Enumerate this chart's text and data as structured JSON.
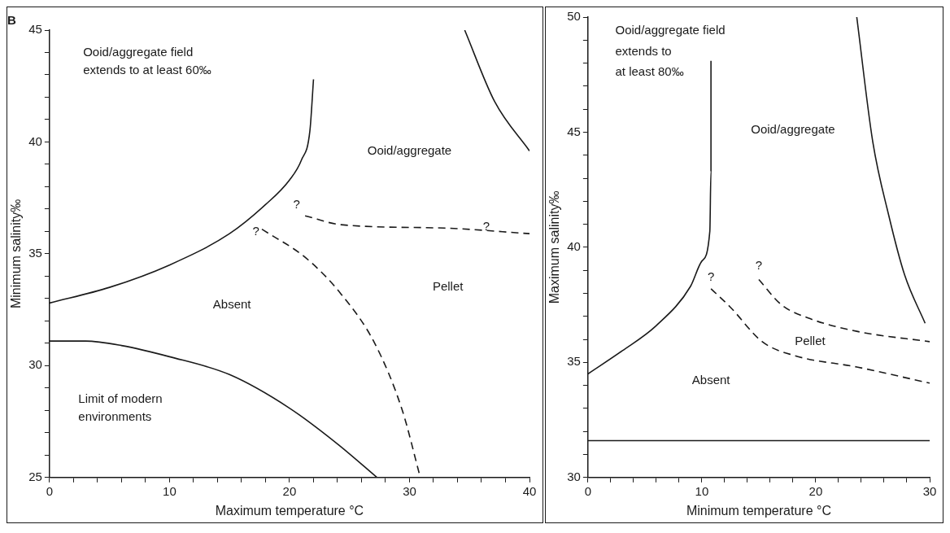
{
  "chart_data": [
    {
      "type": "line",
      "title": "B",
      "xlabel": "Maximum temperature °C",
      "ylabel": "Minimum salinity‰",
      "xlim": [
        0,
        40
      ],
      "ylim": [
        25,
        45
      ],
      "xticks": [
        0,
        {
          "value": 2,
          "label": null
        },
        {
          "value": 4,
          "label": null
        },
        {
          "value": 6,
          "label": null
        },
        {
          "value": 8,
          "label": null
        },
        10,
        {
          "value": 12,
          "label": null
        },
        {
          "value": 14,
          "label": null
        },
        {
          "value": 16,
          "label": null
        },
        {
          "value": 18,
          "label": null
        },
        20,
        {
          "value": 22,
          "label": null
        },
        {
          "value": 24,
          "label": null
        },
        {
          "value": 26,
          "label": null
        },
        {
          "value": 28,
          "label": null
        },
        30,
        {
          "value": 32,
          "label": null
        },
        {
          "value": 34,
          "label": null
        },
        {
          "value": 36,
          "label": null
        },
        {
          "value": 38,
          "label": null
        },
        40
      ],
      "yticks": [
        25,
        {
          "value": 26,
          "label": null
        },
        {
          "value": 27,
          "label": null
        },
        {
          "value": 28,
          "label": null
        },
        {
          "value": 29,
          "label": null
        },
        30,
        {
          "value": 31,
          "label": null
        },
        {
          "value": 32,
          "label": null
        },
        {
          "value": 33,
          "label": null
        },
        {
          "value": 34,
          "label": null
        },
        35,
        {
          "value": 36,
          "label": null
        },
        {
          "value": 37,
          "label": null
        },
        {
          "value": 38,
          "label": null
        },
        {
          "value": 39,
          "label": null
        },
        40,
        {
          "value": 41,
          "label": null
        },
        {
          "value": 42,
          "label": null
        },
        {
          "value": 43,
          "label": null
        },
        {
          "value": 44,
          "label": null
        },
        45
      ],
      "grid": false,
      "legend": false,
      "marker": "none",
      "series": [
        {
          "color": "#1a1a1a",
          "line_style": "solid",
          "x": [
            0,
            5,
            10,
            15,
            18,
            20,
            21,
            21.7,
            22
          ],
          "values": [
            32.8,
            33.5,
            34.5,
            35.9,
            37.2,
            38.3,
            39.2,
            40.5,
            42.8
          ]
        },
        {
          "color": "#1a1a1a",
          "line_style": "solid",
          "x": [
            0,
            3,
            6,
            10,
            15,
            20,
            24,
            27.3
          ],
          "values": [
            31.1,
            31.1,
            30.9,
            30.4,
            29.6,
            28.1,
            26.5,
            25
          ]
        },
        {
          "color": "#1a1a1a",
          "line_style": "solid",
          "x": [
            34.6,
            37.1,
            40
          ],
          "values": [
            45,
            41.8,
            39.6
          ]
        },
        {
          "color": "#1a1a1a",
          "line_style": "dashed",
          "x": [
            21.3,
            24.3,
            32.9,
            40
          ],
          "values": [
            36.7,
            36.3,
            36.15,
            35.9
          ]
        },
        {
          "color": "#1a1a1a",
          "line_style": "dashed",
          "x": [
            17.7,
            21.4,
            24.3,
            27.1,
            29.4,
            30.9
          ],
          "values": [
            36.1,
            34.8,
            33.2,
            31,
            28,
            25
          ]
        }
      ],
      "annotations": [
        "Ooid/aggregate field",
        "extends to at least 60‰",
        "Ooid/aggregate",
        "Absent",
        "Pellet",
        "Limit of modern",
        "environments",
        "?",
        "?",
        "?"
      ]
    },
    {
      "type": "line",
      "xlabel": "Minimum temperature °C",
      "ylabel": "Maximum salinity‰",
      "xlim": [
        0,
        30
      ],
      "ylim": [
        30,
        50
      ],
      "xticks": [
        0,
        {
          "value": 2,
          "label": null
        },
        {
          "value": 4,
          "label": null
        },
        {
          "value": 6,
          "label": null
        },
        {
          "value": 8,
          "label": null
        },
        10,
        {
          "value": 12,
          "label": null
        },
        {
          "value": 14,
          "label": null
        },
        {
          "value": 16,
          "label": null
        },
        {
          "value": 18,
          "label": null
        },
        20,
        {
          "value": 22,
          "label": null
        },
        {
          "value": 24,
          "label": null
        },
        {
          "value": 26,
          "label": null
        },
        {
          "value": 28,
          "label": null
        },
        30
      ],
      "yticks": [
        30,
        {
          "value": 31,
          "label": null
        },
        {
          "value": 32,
          "label": null
        },
        {
          "value": 33,
          "label": null
        },
        {
          "value": 34,
          "label": null
        },
        35,
        {
          "value": 36,
          "label": null
        },
        {
          "value": 37,
          "label": null
        },
        {
          "value": 38,
          "label": null
        },
        {
          "value": 39,
          "label": null
        },
        40,
        {
          "value": 41,
          "label": null
        },
        {
          "value": 42,
          "label": null
        },
        {
          "value": 43,
          "label": null
        },
        {
          "value": 44,
          "label": null
        },
        45,
        {
          "value": 46,
          "label": null
        },
        {
          "value": 47,
          "label": null
        },
        {
          "value": 48,
          "label": null
        },
        {
          "value": 49,
          "label": null
        },
        50
      ],
      "grid": false,
      "legend": false,
      "marker": "none",
      "series": [
        {
          "color": "#1a1a1a",
          "line_style": "solid",
          "x": [
            0,
            3,
            6,
            9,
            10,
            10.7,
            10.8,
            10.8
          ],
          "values": [
            34.5,
            35.5,
            36.6,
            38.3,
            39.4,
            40.7,
            43.3,
            48.1
          ]
        },
        {
          "color": "#1a1a1a",
          "line_style": "solid",
          "x": [
            23.6,
            25,
            26.4,
            27.8,
            29.6
          ],
          "values": [
            50,
            44.6,
            41.4,
            38.8,
            36.7
          ]
        },
        {
          "color": "#1a1a1a",
          "line_style": "solid",
          "x": [
            0,
            30
          ],
          "values": [
            31.6,
            31.6
          ]
        },
        {
          "color": "#1a1a1a",
          "line_style": "dashed",
          "x": [
            15,
            17,
            19.5,
            23.6,
            30
          ],
          "values": [
            38.6,
            37.5,
            36.9,
            36.35,
            35.9
          ]
        },
        {
          "color": "#1a1a1a",
          "line_style": "dashed",
          "x": [
            10.8,
            12.5,
            15.3,
            18.1,
            23.6,
            30
          ],
          "values": [
            38.2,
            37.4,
            35.9,
            35.3,
            34.8,
            34.1
          ]
        }
      ],
      "annotations": [
        "Ooid/aggregate field",
        "extends to",
        "at least 80‰",
        "Ooid/aggregate",
        "Pellet",
        "Absent",
        "?",
        "?"
      ]
    }
  ]
}
